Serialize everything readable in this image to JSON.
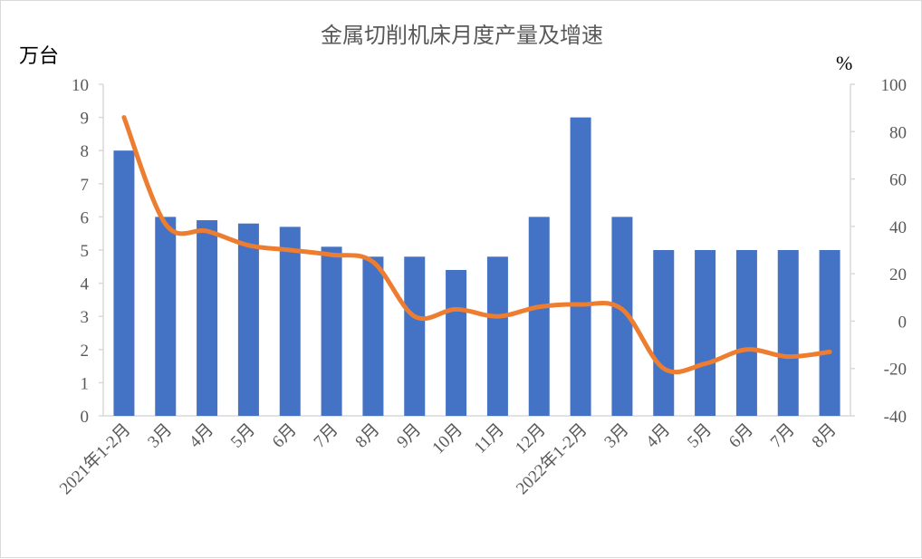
{
  "chart_data": {
    "type": "bar+line",
    "title": "金属切削机床月度产量及增速",
    "ylabel_left": "万台",
    "ylabel_right": "%",
    "categories": [
      "2021年1-2月",
      "3月",
      "4月",
      "5月",
      "6月",
      "7月",
      "8月",
      "9月",
      "10月",
      "11月",
      "12月",
      "2022年1-2月",
      "3月",
      "4月",
      "5月",
      "6月",
      "7月",
      "8月"
    ],
    "series": [
      {
        "type": "bar",
        "axis": "left",
        "color": "#4472c4",
        "values": [
          8,
          6,
          5.9,
          5.8,
          5.7,
          5.1,
          4.8,
          4.8,
          4.4,
          4.8,
          6,
          9,
          6,
          5,
          5,
          5,
          5,
          5
        ]
      },
      {
        "type": "line",
        "axis": "right",
        "color": "#ed7d31",
        "smooth": true,
        "values": [
          86,
          41,
          38,
          32,
          30,
          28,
          25,
          2,
          5,
          2,
          6,
          7,
          5,
          -20,
          -18,
          -12,
          -15,
          -13
        ]
      }
    ],
    "ylim_left": [
      0,
      10
    ],
    "yticks_left": [
      0,
      1,
      2,
      3,
      4,
      5,
      6,
      7,
      8,
      9,
      10
    ],
    "ylim_right": [
      -40,
      100
    ],
    "yticks_right": [
      -40,
      -20,
      0,
      20,
      40,
      60,
      80,
      100
    ],
    "grid": false,
    "legend": "none"
  }
}
